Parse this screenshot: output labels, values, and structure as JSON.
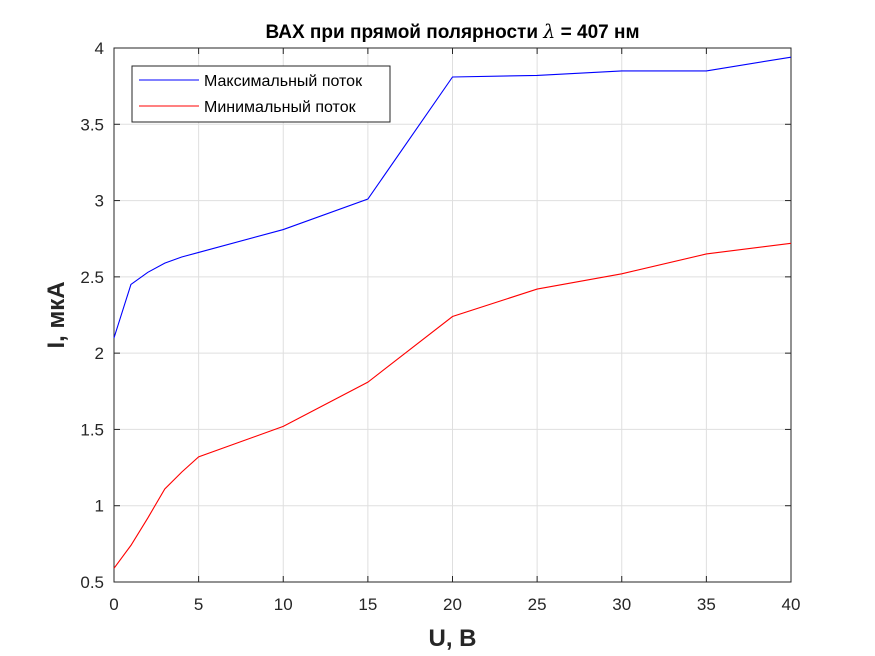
{
  "chart_data": {
    "type": "line",
    "title_prefix": "ВАХ при прямой полярности ",
    "title_symbol": "λ",
    "title_suffix": " = 407 нм",
    "xlabel": "U, В",
    "ylabel": "I, мкА",
    "xlim": [
      0,
      40
    ],
    "ylim": [
      0.5,
      4
    ],
    "xticks": [
      0,
      5,
      10,
      15,
      20,
      25,
      30,
      35,
      40
    ],
    "yticks": [
      0.5,
      1,
      1.5,
      2,
      2.5,
      3,
      3.5,
      4
    ],
    "xtick_labels": [
      "0",
      "5",
      "10",
      "15",
      "20",
      "25",
      "30",
      "35",
      "40"
    ],
    "ytick_labels": [
      "0.5",
      "1",
      "1.5",
      "2",
      "2.5",
      "3",
      "3.5",
      "4"
    ],
    "grid": true,
    "legend_position": "top-left",
    "series": [
      {
        "name": "Максимальный поток",
        "color": "#0000ff",
        "x": [
          0,
          1,
          2,
          3,
          4,
          5,
          10,
          15,
          20,
          25,
          30,
          35,
          40
        ],
        "y": [
          2.1,
          2.45,
          2.53,
          2.59,
          2.63,
          2.66,
          2.81,
          3.01,
          3.81,
          3.82,
          3.85,
          3.85,
          3.94
        ]
      },
      {
        "name": "Минимальный поток",
        "color": "#ff0000",
        "x": [
          0,
          1,
          2,
          3,
          4,
          5,
          10,
          15,
          20,
          25,
          30,
          35,
          40
        ],
        "y": [
          0.59,
          0.74,
          0.92,
          1.11,
          1.22,
          1.32,
          1.52,
          1.81,
          2.24,
          2.42,
          2.52,
          2.65,
          2.72
        ]
      }
    ]
  }
}
